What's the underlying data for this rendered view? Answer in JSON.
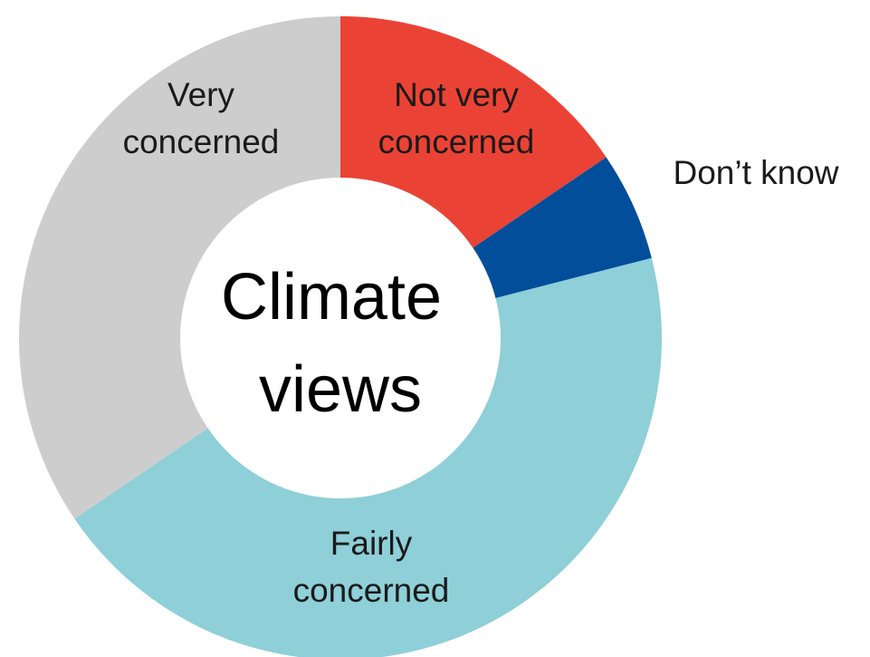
{
  "chart_data": {
    "type": "pie",
    "donut": true,
    "center_label": [
      "Climate",
      "views"
    ],
    "slices": [
      {
        "label": "Not very concerned",
        "lines": [
          "Not very",
          "concerned"
        ],
        "value": 15.5,
        "color": "#ea4335"
      },
      {
        "label": "Don’t know",
        "lines": [
          "Don’t know"
        ],
        "value": 5.5,
        "color": "#034e9a"
      },
      {
        "label": "Fairly concerned",
        "lines": [
          "Fairly",
          "concerned"
        ],
        "value": 44.5,
        "color": "#8ecfd8"
      },
      {
        "label": "Very concerned",
        "lines": [
          "Very",
          "concerned"
        ],
        "value": 34.5,
        "color": "#cdcdcd"
      }
    ],
    "start_angle": "top",
    "direction": "clockwise",
    "legend": "none"
  }
}
